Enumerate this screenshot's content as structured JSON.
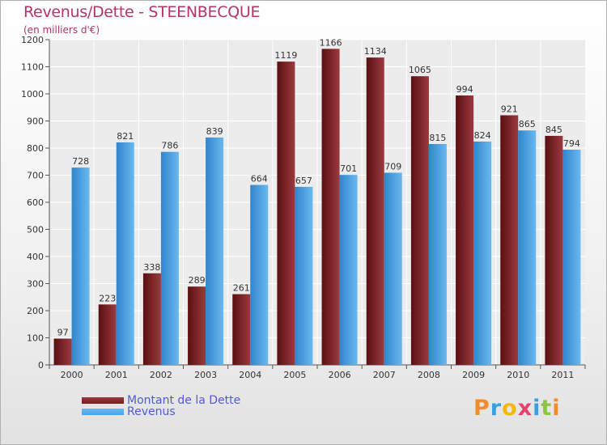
{
  "chart_data": {
    "type": "bar",
    "title": "Revenus/Dette - STEENBECQUE",
    "subtitle": "(en milliers d'€)",
    "xlabel": "",
    "ylabel": "",
    "ylim": [
      0,
      1200
    ],
    "yticks": [
      0,
      100,
      200,
      300,
      400,
      500,
      600,
      700,
      800,
      900,
      1000,
      1100,
      1200
    ],
    "grid": true,
    "legend_position": "bottom-left",
    "categories": [
      "2000",
      "2001",
      "2002",
      "2003",
      "2004",
      "2005",
      "2006",
      "2007",
      "2008",
      "2009",
      "2010",
      "2011"
    ],
    "series": [
      {
        "name": "Montant de la Dette",
        "color": "#7a1a1e",
        "values": [
          97,
          223,
          338,
          289,
          261,
          1119,
          1166,
          1134,
          1065,
          994,
          921,
          845
        ]
      },
      {
        "name": "Revenus",
        "color": "#4aa3e6",
        "values": [
          728,
          821,
          786,
          839,
          664,
          657,
          701,
          709,
          815,
          824,
          865,
          794
        ]
      }
    ]
  },
  "logo": {
    "letters": [
      "P",
      "r",
      "o",
      "x",
      "i",
      "t",
      "i"
    ],
    "colors": [
      "#f28c28",
      "#3b9ee0",
      "#f5b800",
      "#e83f6f",
      "#3b9ee0",
      "#8cc63f",
      "#f28c28"
    ]
  }
}
